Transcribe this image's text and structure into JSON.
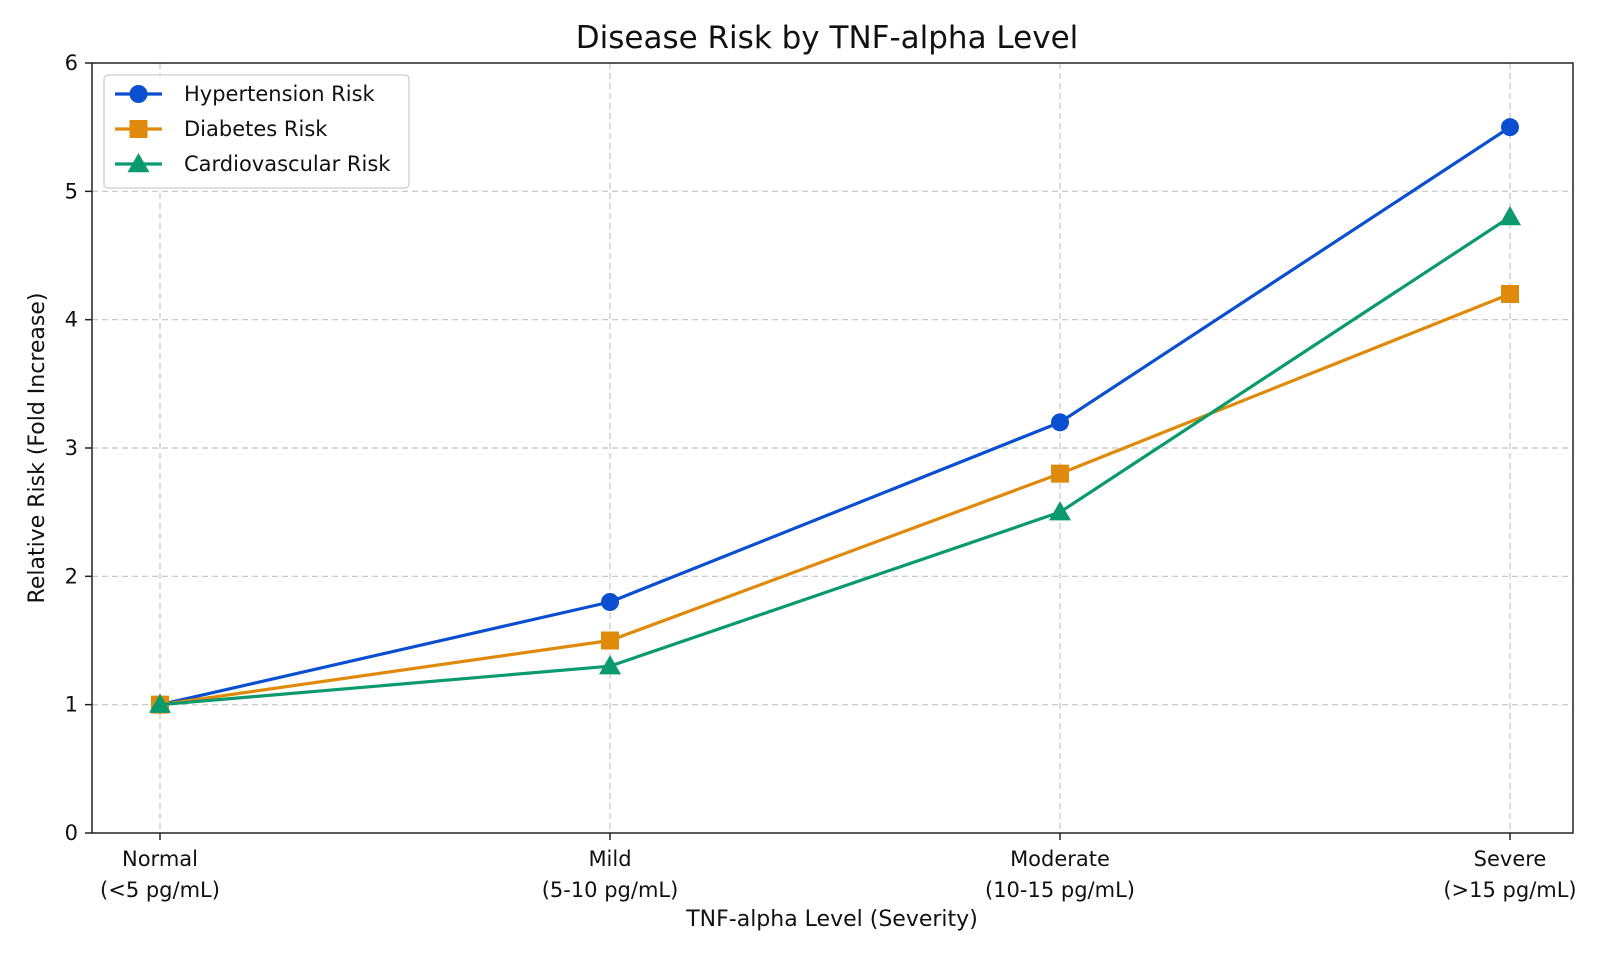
{
  "chart_data": {
    "type": "line",
    "title": "Disease Risk by TNF-alpha Level",
    "xlabel": "TNF-alpha Level (Severity)",
    "ylabel": "Relative Risk (Fold Increase)",
    "categories": [
      [
        "Normal",
        "(<5 pg/mL)"
      ],
      [
        "Mild",
        "(5-10 pg/mL)"
      ],
      [
        "Moderate",
        "(10-15 pg/mL)"
      ],
      [
        "Severe",
        "(>15 pg/mL)"
      ]
    ],
    "ylim": [
      0,
      6
    ],
    "yticks": [
      "0",
      "1",
      "2",
      "3",
      "4",
      "5",
      "6"
    ],
    "grid": true,
    "legend_position": "top-left",
    "series": [
      {
        "name": "Hypertension Risk",
        "values": [
          1.0,
          1.8,
          3.2,
          5.5
        ],
        "color": "#0b4fd1",
        "marker": "circle"
      },
      {
        "name": "Diabetes Risk",
        "values": [
          1.0,
          1.5,
          2.8,
          4.2
        ],
        "color": "#e08a0b",
        "marker": "square"
      },
      {
        "name": "Cardiovascular Risk",
        "values": [
          1.0,
          1.3,
          2.5,
          4.8
        ],
        "color": "#0b9a6d",
        "marker": "triangle"
      }
    ]
  }
}
